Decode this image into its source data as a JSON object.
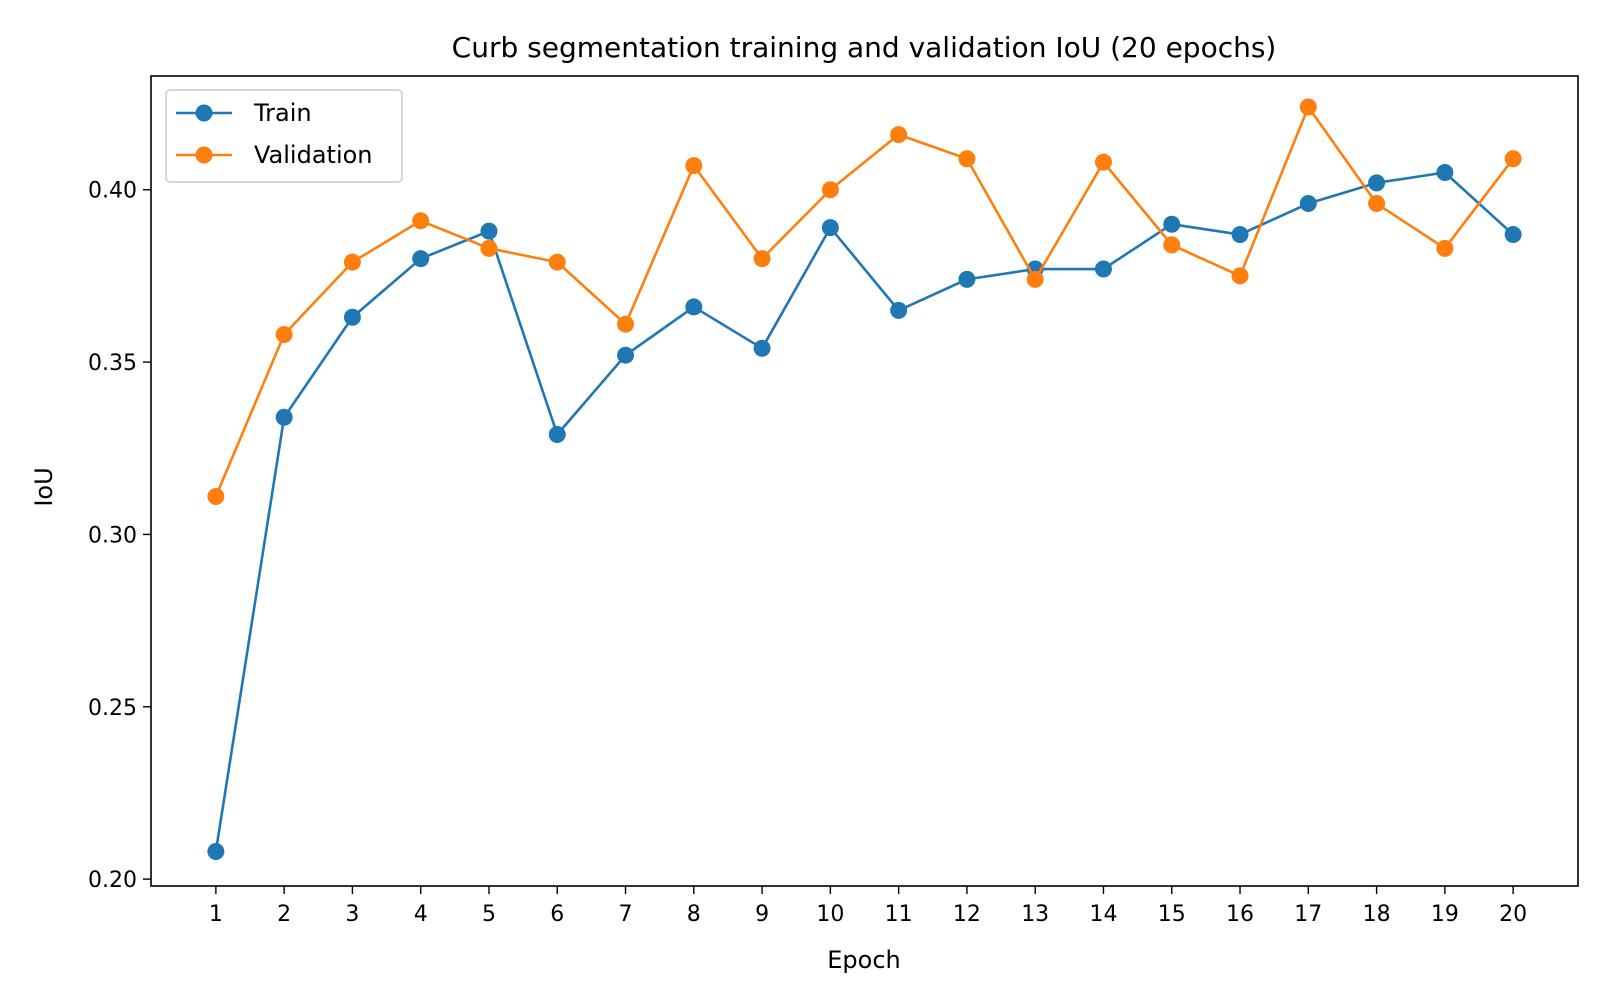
{
  "chart_data": {
    "type": "line",
    "title": "Curb segmentation training and validation IoU (20 epochs)",
    "xlabel": "Epoch",
    "ylabel": "IoU",
    "x": [
      1,
      2,
      3,
      4,
      5,
      6,
      7,
      8,
      9,
      10,
      11,
      12,
      13,
      14,
      15,
      16,
      17,
      18,
      19,
      20
    ],
    "xticks": [
      "1",
      "2",
      "3",
      "4",
      "5",
      "6",
      "7",
      "8",
      "9",
      "10",
      "11",
      "12",
      "13",
      "14",
      "15",
      "16",
      "17",
      "18",
      "19",
      "20"
    ],
    "yticks": [
      "0.20",
      "0.25",
      "0.30",
      "0.35",
      "0.40"
    ],
    "ylim": [
      0.198,
      0.433
    ],
    "xlim": [
      0.05,
      20.95
    ],
    "grid": false,
    "legend_position": "top-left",
    "series": [
      {
        "name": "Train",
        "color": "#1f77b4",
        "values": [
          0.208,
          0.334,
          0.363,
          0.38,
          0.388,
          0.329,
          0.352,
          0.366,
          0.354,
          0.389,
          0.365,
          0.374,
          0.377,
          0.377,
          0.39,
          0.387,
          0.396,
          0.402,
          0.405,
          0.387
        ]
      },
      {
        "name": "Validation",
        "color": "#ff7f0e",
        "values": [
          0.311,
          0.358,
          0.379,
          0.391,
          0.383,
          0.379,
          0.361,
          0.407,
          0.38,
          0.4,
          0.416,
          0.409,
          0.374,
          0.408,
          0.384,
          0.375,
          0.424,
          0.396,
          0.383,
          0.409
        ]
      }
    ]
  }
}
